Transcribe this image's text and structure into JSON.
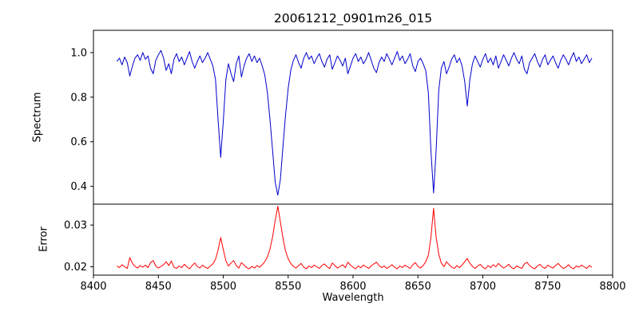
{
  "chart_data": {
    "type": "line",
    "title": "20061212_0901m26_015",
    "xlabel": "Wavelength",
    "xlim": [
      8400,
      8800
    ],
    "xticks": [
      8400,
      8450,
      8500,
      8550,
      8600,
      8650,
      8700,
      8750,
      8800
    ],
    "grid": false,
    "legend": "none",
    "panels": [
      {
        "name": "spectrum",
        "ylabel": "Spectrum",
        "color": "#0000cc",
        "ylim": [
          0.32,
          1.1
        ],
        "yticks": [
          0.4,
          0.6,
          0.8,
          1.0
        ],
        "ytick_labels": [
          "0.4",
          "0.6",
          "0.8",
          "1.0"
        ],
        "x_start": 8418,
        "x_step": 2,
        "y": [
          0.96,
          0.975,
          0.945,
          0.98,
          0.955,
          0.895,
          0.94,
          0.975,
          0.99,
          0.965,
          1.0,
          0.97,
          0.985,
          0.93,
          0.905,
          0.965,
          0.99,
          1.01,
          0.975,
          0.92,
          0.95,
          0.905,
          0.97,
          0.995,
          0.96,
          0.98,
          0.945,
          0.975,
          1.005,
          0.96,
          0.93,
          0.96,
          0.985,
          0.955,
          0.975,
          1.0,
          0.97,
          0.94,
          0.88,
          0.7,
          0.53,
          0.69,
          0.88,
          0.95,
          0.905,
          0.87,
          0.95,
          0.985,
          0.89,
          0.94,
          0.975,
          0.995,
          0.96,
          0.985,
          0.955,
          0.975,
          0.94,
          0.9,
          0.82,
          0.7,
          0.56,
          0.42,
          0.36,
          0.43,
          0.58,
          0.72,
          0.84,
          0.92,
          0.965,
          0.99,
          0.955,
          0.93,
          0.975,
          1.0,
          0.97,
          0.985,
          0.95,
          0.975,
          0.995,
          0.96,
          0.935,
          0.97,
          0.99,
          0.925,
          0.955,
          0.985,
          0.965,
          0.94,
          0.975,
          0.905,
          0.94,
          0.975,
          0.995,
          0.96,
          0.98,
          0.95,
          0.97,
          1.0,
          0.965,
          0.93,
          0.91,
          0.955,
          0.98,
          0.96,
          0.995,
          0.97,
          0.945,
          0.975,
          1.005,
          0.965,
          0.985,
          0.95,
          0.97,
          0.995,
          0.94,
          0.915,
          0.96,
          0.975,
          0.95,
          0.92,
          0.82,
          0.56,
          0.37,
          0.56,
          0.83,
          0.93,
          0.96,
          0.905,
          0.935,
          0.97,
          0.99,
          0.955,
          0.975,
          0.94,
          0.87,
          0.76,
          0.88,
          0.95,
          0.985,
          0.96,
          0.935,
          0.97,
          0.995,
          0.955,
          0.975,
          0.945,
          0.985,
          0.93,
          0.96,
          0.99,
          0.965,
          0.94,
          0.975,
          1.0,
          0.97,
          0.95,
          0.985,
          0.925,
          0.905,
          0.955,
          0.975,
          0.995,
          0.96,
          0.935,
          0.97,
          0.99,
          0.945,
          0.965,
          0.985,
          0.955,
          0.93,
          0.965,
          0.99,
          0.97,
          0.945,
          0.975,
          1.0,
          0.96,
          0.98,
          0.95,
          0.97,
          0.99,
          0.955,
          0.975
        ]
      },
      {
        "name": "error",
        "ylabel": "Error",
        "color": "#ff0000",
        "ylim": [
          0.018,
          0.035
        ],
        "yticks": [
          0.02,
          0.03
        ],
        "ytick_labels": [
          "0.02",
          "0.03"
        ],
        "x_start": 8418,
        "x_step": 2,
        "y": [
          0.0202,
          0.0198,
          0.0205,
          0.02,
          0.0196,
          0.0222,
          0.0208,
          0.0201,
          0.0197,
          0.0203,
          0.0199,
          0.0204,
          0.0198,
          0.021,
          0.0215,
          0.0202,
          0.0197,
          0.0201,
          0.0205,
          0.0212,
          0.0203,
          0.0214,
          0.0199,
          0.0196,
          0.0202,
          0.0198,
          0.0206,
          0.02,
          0.0195,
          0.0203,
          0.0209,
          0.0201,
          0.0197,
          0.0204,
          0.0199,
          0.0196,
          0.0202,
          0.0207,
          0.0218,
          0.024,
          0.027,
          0.0242,
          0.0214,
          0.0202,
          0.0209,
          0.0215,
          0.0203,
          0.0197,
          0.021,
          0.0204,
          0.0198,
          0.0195,
          0.0201,
          0.0197,
          0.0203,
          0.0199,
          0.0205,
          0.0212,
          0.0224,
          0.0242,
          0.0272,
          0.031,
          0.0345,
          0.0308,
          0.0268,
          0.0238,
          0.0219,
          0.0208,
          0.0201,
          0.0197,
          0.0203,
          0.0208,
          0.0199,
          0.0195,
          0.0202,
          0.0198,
          0.0204,
          0.02,
          0.0196,
          0.0203,
          0.0207,
          0.02,
          0.0196,
          0.0209,
          0.0203,
          0.0197,
          0.0201,
          0.0205,
          0.0198,
          0.0211,
          0.0204,
          0.0199,
          0.0195,
          0.0202,
          0.0198,
          0.0204,
          0.02,
          0.0196,
          0.0202,
          0.0207,
          0.0211,
          0.0203,
          0.0198,
          0.0202,
          0.0196,
          0.02,
          0.0205,
          0.0199,
          0.0195,
          0.0202,
          0.0198,
          0.0204,
          0.02,
          0.0196,
          0.0205,
          0.021,
          0.0201,
          0.0197,
          0.0203,
          0.0212,
          0.0228,
          0.027,
          0.034,
          0.0272,
          0.023,
          0.0209,
          0.02,
          0.0212,
          0.0205,
          0.0199,
          0.0196,
          0.0203,
          0.0198,
          0.0204,
          0.0212,
          0.022,
          0.0208,
          0.0201,
          0.0196,
          0.0202,
          0.0206,
          0.0199,
          0.0195,
          0.0203,
          0.0198,
          0.0205,
          0.02,
          0.0208,
          0.0202,
          0.0197,
          0.0201,
          0.0206,
          0.0198,
          0.0195,
          0.0202,
          0.0199,
          0.0196,
          0.0207,
          0.0211,
          0.0203,
          0.0198,
          0.0195,
          0.0202,
          0.0206,
          0.0199,
          0.0196,
          0.0204,
          0.02,
          0.0197,
          0.0203,
          0.0208,
          0.0201,
          0.0196,
          0.0199,
          0.0205,
          0.0198,
          0.0195,
          0.0202,
          0.0199,
          0.0204,
          0.02,
          0.0196,
          0.0203,
          0.0199
        ]
      }
    ]
  }
}
